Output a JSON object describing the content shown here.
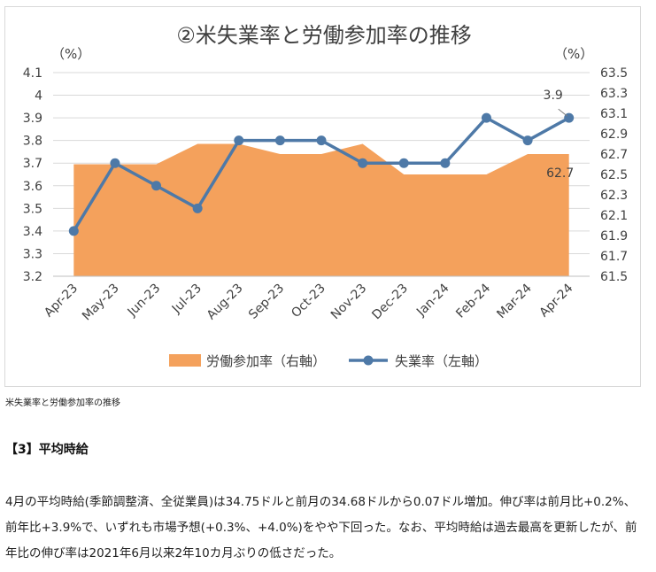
{
  "chart_data": {
    "type": "line",
    "title": "②米失業率と労働参加率の推移",
    "left_unit": "（%）",
    "right_unit": "（%）",
    "categories": [
      "Apr-23",
      "May-23",
      "Jun-23",
      "Jul-23",
      "Aug-23",
      "Sep-23",
      "Oct-23",
      "Nov-23",
      "Dec-23",
      "Jan-24",
      "Feb-24",
      "Mar-24",
      "Apr-24"
    ],
    "y_left": {
      "min": 3.2,
      "max": 4.1,
      "ticks": [
        "3.2",
        "3.3",
        "3.4",
        "3.5",
        "3.6",
        "3.7",
        "3.8",
        "3.9",
        "4",
        "4.1"
      ]
    },
    "y_right": {
      "min": 61.5,
      "max": 63.5,
      "ticks": [
        "61.5",
        "61.7",
        "61.9",
        "62.1",
        "62.3",
        "62.5",
        "62.7",
        "62.9",
        "63.1",
        "63.3",
        "63.5"
      ]
    },
    "series": [
      {
        "name": "労働参加率（右軸）",
        "kind": "area",
        "axis": "right",
        "color": "#f4a15c",
        "values": [
          62.6,
          62.6,
          62.6,
          62.8,
          62.8,
          62.7,
          62.7,
          62.8,
          62.5,
          62.5,
          62.5,
          62.7,
          62.7
        ],
        "end_label": "62.7"
      },
      {
        "name": "失業率（左軸）",
        "kind": "line",
        "axis": "left",
        "color": "#4e79a7",
        "values": [
          3.4,
          3.7,
          3.6,
          3.5,
          3.8,
          3.8,
          3.8,
          3.7,
          3.7,
          3.7,
          3.9,
          3.8,
          3.9
        ],
        "end_label": "3.9"
      }
    ],
    "grid": true,
    "legend": "bottom"
  },
  "caption": "米失業率と労働参加率の推移",
  "section_heading": "【3】平均時給",
  "body_text": "4月の平均時給(季節調整済、全従業員)は34.75ドルと前月の34.68ドルから0.07ドル増加。伸び率は前月比+0.2%、前年比+3.9%で、いずれも市場予想(+0.3%、+4.0%)をやや下回った。なお、平均時給は過去最高を更新したが、前年比の伸び率は2021年6月以来2年10カ月ぶりの低さだった。"
}
